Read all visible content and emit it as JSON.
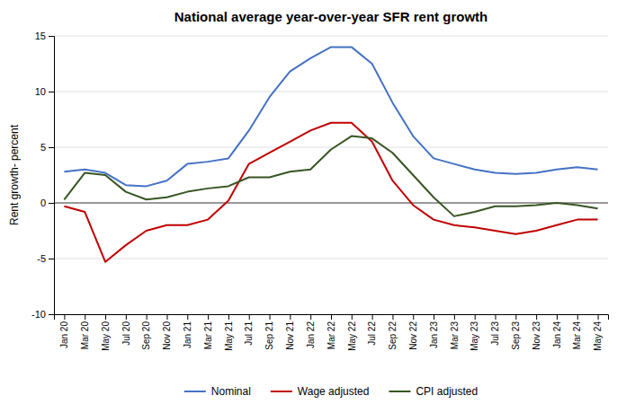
{
  "chart_data": {
    "type": "line",
    "title": "National  average year-over-year SFR rent growth",
    "ylabel": "Rent growth- percent",
    "categories": [
      "Jan 20",
      "Mar 20",
      "May 20",
      "Jul 20",
      "Sep 20",
      "Nov 20",
      "Jan 21",
      "Mar 21",
      "May 21",
      "Jul 21",
      "Sep 21",
      "Nov 21",
      "Jan 22",
      "Mar 22",
      "May 22",
      "Jul 22",
      "Sep 22",
      "Nov 22",
      "Jan 23",
      "Mar 23",
      "May 23",
      "Jul 23",
      "Sep 23",
      "Nov 23",
      "Jan 24",
      "Mar 24",
      "May 24"
    ],
    "series": [
      {
        "name": "Nominal",
        "color": "#4472C4",
        "values": [
          2.8,
          3.0,
          2.7,
          1.6,
          1.5,
          2.0,
          3.5,
          3.7,
          4.0,
          6.5,
          9.5,
          11.8,
          13.0,
          14.0,
          14.0,
          12.5,
          9.0,
          6.0,
          4.0,
          3.5,
          3.0,
          2.7,
          2.6,
          2.7,
          3.0,
          3.2,
          3.0
        ]
      },
      {
        "name": "Wage adjusted",
        "color": "#C00000",
        "values": [
          -0.3,
          -0.8,
          -5.3,
          -3.8,
          -2.5,
          -2.0,
          -2.0,
          -1.5,
          0.2,
          3.5,
          4.5,
          5.5,
          6.5,
          7.2,
          7.2,
          5.5,
          2.0,
          -0.2,
          -1.5,
          -2.0,
          -2.2,
          -2.5,
          -2.8,
          -2.5,
          -2.0,
          -1.5,
          -1.5
        ]
      },
      {
        "name": "CPI adjusted",
        "color": "#375623",
        "values": [
          0.3,
          2.7,
          2.5,
          1.0,
          0.3,
          0.5,
          1.0,
          1.3,
          1.5,
          2.3,
          2.3,
          2.8,
          3.0,
          4.8,
          6.0,
          5.8,
          4.5,
          2.5,
          0.5,
          -1.2,
          -0.8,
          -0.3,
          -0.3,
          -0.2,
          0.0,
          -0.2,
          -0.5
        ]
      }
    ],
    "ylim": [
      -10,
      15
    ],
    "yticks": [
      -10,
      -5,
      0,
      5,
      10,
      15
    ],
    "grid": true,
    "legend": "bottom"
  }
}
